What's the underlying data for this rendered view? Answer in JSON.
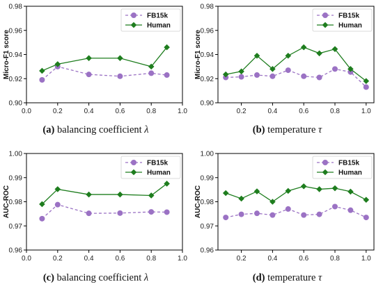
{
  "style": {
    "fb_color": "#9b72c4",
    "human_color": "#1e7d1e",
    "axis_color": "#000000"
  },
  "chart_data": [
    {
      "type": "line",
      "panel_id": "a",
      "caption": {
        "letter": "(a)",
        "text": "balancing coefficient",
        "symbol": "λ"
      },
      "xlabel": "",
      "ylabel": "Micro-F1 score",
      "xlim": [
        0.0,
        1.0
      ],
      "ylim": [
        0.9,
        0.98
      ],
      "xticks": [
        "0.0",
        "0.2",
        "0.4",
        "0.6",
        "0.8",
        "1.0"
      ],
      "yticks": [
        "0.90",
        "0.92",
        "0.94",
        "0.96",
        "0.98"
      ],
      "legend_position": "top-right",
      "x": [
        0.1,
        0.2,
        0.4,
        0.6,
        0.8,
        0.9
      ],
      "series": [
        {
          "name": "FB15k",
          "marker": "circle",
          "line": "dashed",
          "values": [
            0.919,
            0.93,
            0.9235,
            0.922,
            0.9245,
            0.923
          ]
        },
        {
          "name": "Human",
          "marker": "diamond",
          "line": "solid",
          "values": [
            0.9265,
            0.932,
            0.937,
            0.937,
            0.93,
            0.946
          ]
        }
      ]
    },
    {
      "type": "line",
      "panel_id": "b",
      "caption": {
        "letter": "(b)",
        "text": "temperature",
        "symbol": "τ"
      },
      "xlabel": "",
      "ylabel": "Micro-F1 score",
      "xlim": [
        0.05,
        1.05
      ],
      "ylim": [
        0.9,
        0.98
      ],
      "xticks": [
        "0.2",
        "0.4",
        "0.6",
        "0.8",
        "1.0"
      ],
      "yticks": [
        "0.90",
        "0.92",
        "0.94",
        "0.96",
        "0.98"
      ],
      "legend_position": "top-right",
      "x": [
        0.1,
        0.2,
        0.3,
        0.4,
        0.5,
        0.6,
        0.7,
        0.8,
        0.9,
        1.0
      ],
      "series": [
        {
          "name": "FB15k",
          "marker": "circle",
          "line": "dashed",
          "values": [
            0.921,
            0.9215,
            0.923,
            0.922,
            0.927,
            0.922,
            0.921,
            0.928,
            0.9255,
            0.913
          ]
        },
        {
          "name": "Human",
          "marker": "diamond",
          "line": "solid",
          "values": [
            0.9235,
            0.926,
            0.939,
            0.928,
            0.939,
            0.946,
            0.941,
            0.9445,
            0.928,
            0.918
          ]
        }
      ]
    },
    {
      "type": "line",
      "panel_id": "c",
      "caption": {
        "letter": "(c)",
        "text": "balancing coefficient",
        "symbol": "λ"
      },
      "xlabel": "",
      "ylabel": "AUC-ROC",
      "xlim": [
        0.0,
        1.0
      ],
      "ylim": [
        0.96,
        1.0
      ],
      "xticks": [
        "0.0",
        "0.2",
        "0.4",
        "0.6",
        "0.8",
        "1.0"
      ],
      "yticks": [
        "0.96",
        "0.97",
        "0.98",
        "0.99",
        "1.00"
      ],
      "legend_position": "top-right",
      "x": [
        0.1,
        0.2,
        0.4,
        0.6,
        0.8,
        0.9
      ],
      "series": [
        {
          "name": "FB15k",
          "marker": "circle",
          "line": "dashed",
          "values": [
            0.973,
            0.9788,
            0.9752,
            0.9753,
            0.9758,
            0.9757
          ]
        },
        {
          "name": "Human",
          "marker": "diamond",
          "line": "solid",
          "values": [
            0.979,
            0.9852,
            0.983,
            0.983,
            0.9826,
            0.9875
          ]
        }
      ]
    },
    {
      "type": "line",
      "panel_id": "d",
      "caption": {
        "letter": "(d)",
        "text": "temperature",
        "symbol": "τ"
      },
      "xlabel": "",
      "ylabel": "AUC-ROC",
      "xlim": [
        0.05,
        1.05
      ],
      "ylim": [
        0.96,
        1.0
      ],
      "xticks": [
        "0.2",
        "0.4",
        "0.6",
        "0.8",
        "1.0"
      ],
      "yticks": [
        "0.96",
        "0.97",
        "0.98",
        "0.99",
        "1.00"
      ],
      "legend_position": "top-right",
      "x": [
        0.1,
        0.2,
        0.3,
        0.4,
        0.5,
        0.6,
        0.7,
        0.8,
        0.9,
        1.0
      ],
      "series": [
        {
          "name": "FB15k",
          "marker": "circle",
          "line": "dashed",
          "values": [
            0.9735,
            0.9748,
            0.9752,
            0.9745,
            0.977,
            0.9745,
            0.9748,
            0.978,
            0.9765,
            0.9735
          ]
        },
        {
          "name": "Human",
          "marker": "diamond",
          "line": "solid",
          "values": [
            0.9836,
            0.9813,
            0.9843,
            0.98,
            0.9845,
            0.9864,
            0.9852,
            0.9856,
            0.9842,
            0.9808
          ]
        }
      ]
    }
  ]
}
